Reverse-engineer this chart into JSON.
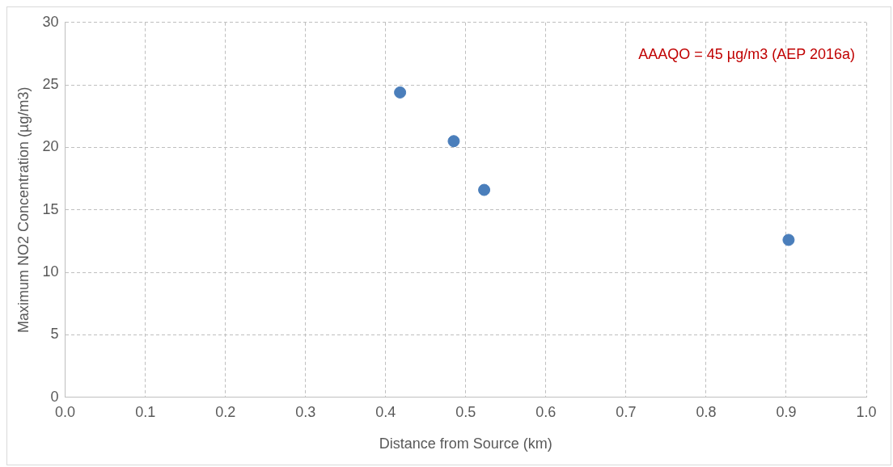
{
  "chart_data": {
    "type": "scatter",
    "xlabel": "Distance from Source (km)",
    "ylabel": "Maximum NO2 Concentration (µg/m3)",
    "x": [
      0.418,
      0.485,
      0.523,
      0.903
    ],
    "series": [
      {
        "color": "#4a7ebb",
        "values": [
          24.4,
          20.5,
          16.6,
          12.6
        ]
      }
    ],
    "xlim": [
      0,
      1
    ],
    "xticks": [
      {
        "value": 0,
        "label": "0.0"
      },
      0.1,
      0.2,
      0.3,
      0.4,
      0.5,
      0.6,
      0.7,
      0.8,
      0.9,
      {
        "value": 1,
        "label": "1.0"
      }
    ],
    "ylim": [
      0,
      30
    ],
    "yticks": [
      0,
      5,
      10,
      15,
      20,
      25,
      30
    ],
    "grid": true,
    "legend": false,
    "marker": "circle",
    "annotations": [
      "AAAQO = 45 µg/m3 (AEP 2016a)"
    ]
  }
}
